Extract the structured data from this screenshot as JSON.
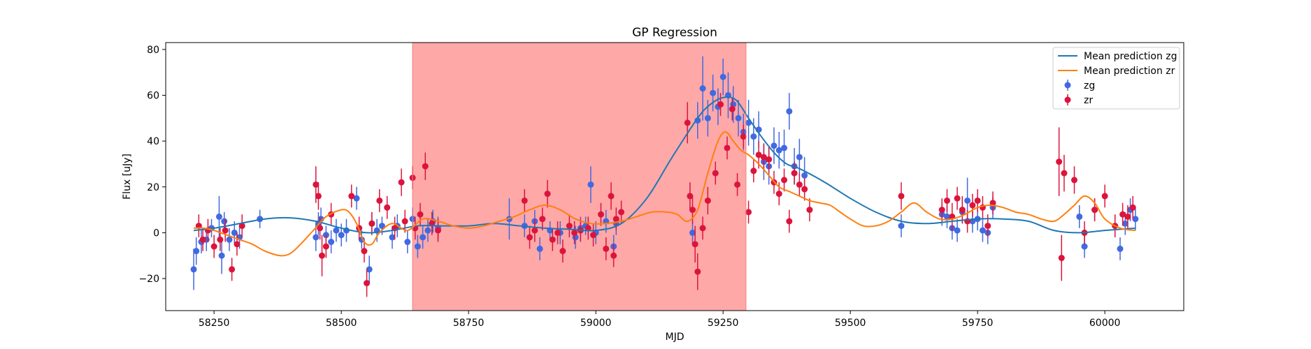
{
  "chart_data": {
    "type": "scatter",
    "title": "GP Regression",
    "xlabel": "MJD",
    "ylabel": "Flux [uJy]",
    "xlim": [
      58155,
      60155
    ],
    "ylim": [
      -34,
      83
    ],
    "xticks": [
      58250,
      58500,
      58750,
      59000,
      59250,
      59500,
      59750,
      60000
    ],
    "yticks": [
      -20,
      0,
      20,
      40,
      60,
      80
    ],
    "legend_position": "top-right",
    "highlight_region": {
      "x0": 58640,
      "x1": 59295,
      "color": "#ffa8a8"
    },
    "lines": [
      {
        "name": "Mean prediction zg",
        "color": "#1f77b4",
        "x": [
          58210,
          58250,
          58300,
          58350,
          58400,
          58450,
          58500,
          58550,
          58600,
          58650,
          58700,
          58750,
          58800,
          58850,
          58900,
          58950,
          59000,
          59050,
          59100,
          59150,
          59200,
          59225,
          59250,
          59275,
          59300,
          59325,
          59350,
          59375,
          59400,
          59450,
          59500,
          59550,
          59600,
          59650,
          59700,
          59750,
          59800,
          59850,
          59900,
          59950,
          60000,
          60060
        ],
        "y": [
          1,
          2,
          4,
          6,
          6.5,
          5,
          2,
          0,
          1,
          3,
          3,
          3,
          4,
          3,
          2,
          1.5,
          1,
          4,
          15,
          33,
          50,
          56,
          59,
          58,
          50,
          42,
          35,
          30,
          28,
          22,
          15,
          9,
          5,
          4,
          5,
          6,
          6,
          5,
          1,
          0,
          1,
          2
        ]
      },
      {
        "name": "Mean prediction zr",
        "color": "#ff7f0e",
        "x": [
          58210,
          58230,
          58250,
          58275,
          58300,
          58325,
          58350,
          58380,
          58400,
          58420,
          58445,
          58470,
          58500,
          58515,
          58530,
          58545,
          58560,
          58575,
          58600,
          58630,
          58660,
          58690,
          58720,
          58750,
          58780,
          58810,
          58840,
          58870,
          58900,
          58930,
          58960,
          58990,
          59020,
          59050,
          59080,
          59110,
          59140,
          59160,
          59180,
          59200,
          59220,
          59240,
          59255,
          59270,
          59285,
          59300,
          59320,
          59340,
          59360,
          59380,
          59400,
          59420,
          59440,
          59460,
          59480,
          59500,
          59525,
          59550,
          59575,
          59600,
          59625,
          59650,
          59675,
          59700,
          59725,
          59750,
          59775,
          59800,
          59825,
          59850,
          59875,
          59900,
          59920,
          59940,
          59960,
          59980,
          60000,
          60030,
          60060
        ],
        "y": [
          2,
          2,
          1,
          -1,
          -3,
          -5,
          -8,
          -10,
          -9,
          -5,
          1,
          7,
          10,
          9,
          4,
          -4,
          -5,
          0,
          4,
          1,
          6,
          5,
          3,
          2,
          3,
          5,
          7,
          10,
          12,
          10,
          6,
          4,
          4,
          5,
          7,
          9,
          9,
          8,
          5,
          10,
          26,
          40,
          44,
          40,
          36,
          34,
          30,
          25,
          20,
          18,
          16,
          14,
          13,
          12,
          9,
          6,
          3,
          3,
          5,
          9,
          13,
          9,
          6,
          6,
          8,
          11,
          12,
          11,
          9,
          8,
          6,
          5,
          8,
          12,
          16,
          13,
          6,
          2,
          1
        ]
      }
    ],
    "series": [
      {
        "name": "zg",
        "color": "#4169e1",
        "x": [
          58210,
          58215,
          58225,
          58235,
          58245,
          58260,
          58265,
          58270,
          58280,
          58290,
          58300,
          58340,
          58450,
          58455,
          58460,
          58470,
          58480,
          58490,
          58500,
          58510,
          58530,
          58540,
          58555,
          58560,
          58570,
          58580,
          58600,
          58610,
          58630,
          58640,
          58650,
          58660,
          58670,
          58680,
          58690,
          58830,
          58860,
          58880,
          58890,
          58910,
          58930,
          58960,
          58970,
          58980,
          58990,
          59000,
          59020,
          59035,
          59040,
          59190,
          59200,
          59210,
          59220,
          59230,
          59240,
          59250,
          59260,
          59270,
          59280,
          59290,
          59300,
          59310,
          59320,
          59330,
          59340,
          59350,
          59360,
          59370,
          59380,
          59390,
          59400,
          59410,
          59600,
          59680,
          59690,
          59700,
          59710,
          59720,
          59730,
          59740,
          59750,
          59760,
          59770,
          59780,
          59950,
          59960,
          59980,
          60030,
          60040,
          60050,
          60060
        ],
        "y": [
          -16,
          -8,
          -4,
          -3,
          2,
          7,
          -10,
          5,
          -3,
          0,
          -2,
          6,
          -2,
          4,
          6,
          -1,
          -4,
          1,
          -1,
          1,
          15,
          -3,
          -16,
          4,
          1,
          3,
          -2,
          3,
          -4,
          6,
          -6,
          -2,
          1,
          5,
          2,
          6,
          3,
          5,
          -7,
          1,
          0,
          -2,
          2,
          3,
          21,
          0,
          5,
          -6,
          4,
          0,
          49,
          63,
          50,
          61,
          55,
          68,
          60,
          56,
          50,
          44,
          48,
          42,
          45,
          31,
          29,
          38,
          36,
          37,
          53,
          29,
          33,
          25,
          3,
          8,
          7,
          2,
          1,
          9,
          14,
          5,
          6,
          1,
          0,
          11,
          7,
          -6,
          10,
          -7,
          4,
          10,
          6
        ],
        "err": [
          9,
          6,
          5,
          5,
          4,
          9,
          8,
          4,
          5,
          5,
          5,
          4,
          6,
          5,
          5,
          4,
          5,
          5,
          5,
          5,
          5,
          4,
          6,
          5,
          5,
          4,
          5,
          5,
          5,
          5,
          5,
          5,
          5,
          5,
          5,
          9,
          5,
          5,
          5,
          4,
          5,
          5,
          5,
          4,
          8,
          5,
          5,
          5,
          5,
          5,
          8,
          14,
          8,
          8,
          8,
          8,
          10,
          8,
          8,
          8,
          10,
          8,
          8,
          8,
          8,
          8,
          8,
          8,
          8,
          8,
          8,
          8,
          5,
          5,
          5,
          5,
          5,
          5,
          10,
          5,
          5,
          5,
          5,
          5,
          5,
          5,
          5,
          5,
          5,
          5,
          5
        ]
      },
      {
        "name": "zr",
        "color": "#dc143c",
        "x": [
          58220,
          58228,
          58238,
          58250,
          58262,
          58272,
          58285,
          58295,
          58305,
          58450,
          58455,
          58458,
          58462,
          58470,
          58480,
          58520,
          58535,
          58545,
          58550,
          58560,
          58575,
          58590,
          58605,
          58618,
          58625,
          58640,
          58645,
          58655,
          58665,
          58678,
          58690,
          58860,
          58870,
          58880,
          58895,
          58905,
          58915,
          58925,
          58935,
          58948,
          58958,
          58970,
          58985,
          58995,
          59010,
          59020,
          59030,
          59035,
          59040,
          59050,
          59180,
          59185,
          59190,
          59195,
          59200,
          59210,
          59220,
          59235,
          59245,
          59258,
          59268,
          59278,
          59290,
          59300,
          59310,
          59320,
          59330,
          59340,
          59350,
          59360,
          59370,
          59380,
          59390,
          59400,
          59410,
          59420,
          59600,
          59680,
          59690,
          59700,
          59710,
          59720,
          59730,
          59740,
          59750,
          59760,
          59770,
          59780,
          59910,
          59915,
          59920,
          59940,
          59960,
          59980,
          60000,
          60020,
          60035,
          60045,
          60055
        ],
        "y": [
          3,
          -3,
          1,
          -6,
          -3,
          1,
          -16,
          -5,
          3,
          21,
          16,
          2,
          -10,
          -6,
          8,
          16,
          2,
          -8,
          -22,
          4,
          14,
          11,
          2,
          22,
          5,
          24,
          2,
          8,
          29,
          4,
          1,
          14,
          -2,
          1,
          6,
          17,
          -3,
          0,
          -8,
          3,
          0,
          1,
          2,
          -1,
          8,
          -7,
          16,
          -10,
          6,
          9,
          48,
          16,
          10,
          -5,
          -17,
          2,
          14,
          26,
          56,
          37,
          54,
          21,
          42,
          9,
          27,
          34,
          33,
          32,
          22,
          17,
          23,
          5,
          26,
          21,
          19,
          10,
          16,
          10,
          14,
          7,
          15,
          10,
          5,
          12,
          14,
          11,
          3,
          13,
          31,
          -11,
          26,
          23,
          0,
          10,
          16,
          3,
          8,
          7,
          11
        ],
        "err": [
          5,
          5,
          5,
          5,
          5,
          5,
          5,
          5,
          5,
          8,
          6,
          5,
          9,
          5,
          5,
          5,
          5,
          5,
          6,
          5,
          5,
          5,
          5,
          6,
          5,
          5,
          5,
          5,
          6,
          5,
          5,
          5,
          5,
          5,
          5,
          6,
          5,
          5,
          5,
          5,
          5,
          5,
          5,
          5,
          5,
          5,
          6,
          5,
          5,
          5,
          9,
          6,
          6,
          8,
          8,
          5,
          6,
          5,
          5,
          5,
          5,
          5,
          5,
          5,
          5,
          6,
          6,
          6,
          5,
          5,
          5,
          5,
          5,
          5,
          5,
          5,
          6,
          5,
          5,
          6,
          5,
          6,
          5,
          5,
          5,
          5,
          5,
          5,
          15,
          10,
          8,
          6,
          5,
          5,
          5,
          5,
          5,
          5,
          5
        ]
      }
    ]
  }
}
